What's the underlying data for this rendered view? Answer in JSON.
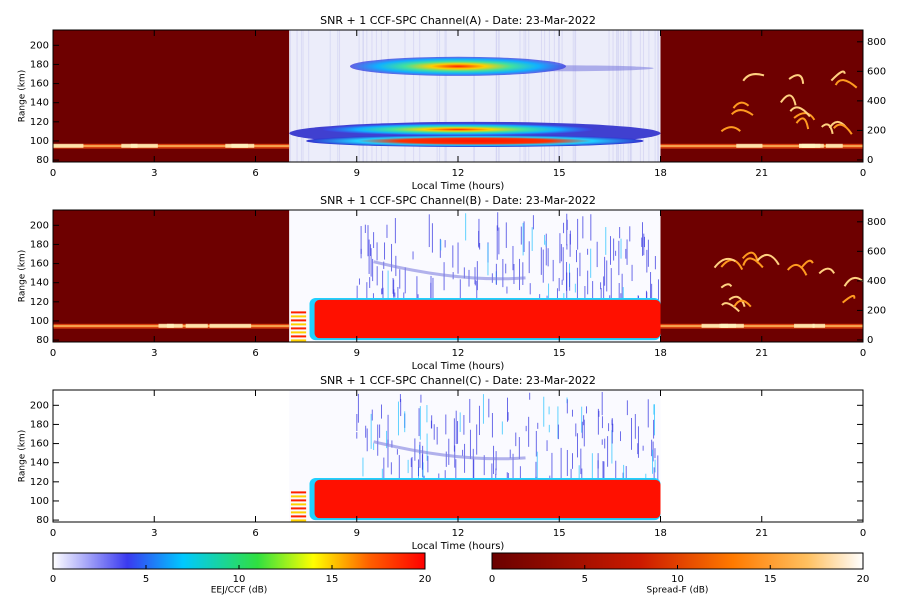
{
  "chart_data": [
    {
      "type": "heatmap",
      "title": "SNR + 1 CCF-SPC Channel(A) - Date: 23-Mar-2022",
      "xlabel": "Local Time (hours)",
      "ylabel": "Range (km)",
      "xlim": [
        0,
        24
      ],
      "xticks": [
        0,
        3,
        6,
        9,
        12,
        15,
        18,
        21,
        {
          "value": 24,
          "label": "0"
        }
      ],
      "ylim": [
        78,
        216
      ],
      "yticks": [
        80,
        100,
        120,
        140,
        160,
        180,
        200
      ],
      "y2lim": [
        -14,
        880
      ],
      "y2ticks": [
        0,
        200,
        400,
        600,
        800
      ]
    },
    {
      "type": "heatmap",
      "title": "SNR + 1 CCF-SPC Channel(B) - Date: 23-Mar-2022",
      "xlabel": "Local Time (hours)",
      "ylabel": "Range (km)",
      "xlim": [
        0,
        24
      ],
      "xticks": [
        0,
        3,
        6,
        9,
        12,
        15,
        18,
        21,
        {
          "value": 24,
          "label": "0"
        }
      ],
      "ylim": [
        78,
        216
      ],
      "yticks": [
        80,
        100,
        120,
        140,
        160,
        180,
        200
      ],
      "y2lim": [
        -14,
        880
      ],
      "y2ticks": [
        0,
        200,
        400,
        600,
        800
      ]
    },
    {
      "type": "heatmap",
      "title": "SNR + 1 CCF-SPC Channel(C) - Date: 23-Mar-2022",
      "xlabel": "Local Time (hours)",
      "ylabel": "Range (km)",
      "xlim": [
        0,
        24
      ],
      "xticks": [
        0,
        3,
        6,
        9,
        12,
        15,
        18,
        21,
        {
          "value": 24,
          "label": "0"
        }
      ],
      "ylim": [
        78,
        216
      ],
      "yticks": [
        80,
        100,
        120,
        140,
        160,
        180,
        200
      ]
    }
  ],
  "colorbars": [
    {
      "label": "EEJ/CCF (dB)",
      "lim": [
        0,
        20
      ],
      "ticks": [
        0,
        5,
        10,
        15,
        20
      ]
    },
    {
      "label": "Spread-F (dB)",
      "lim": [
        0,
        20
      ],
      "ticks": [
        0,
        5,
        10,
        15,
        20
      ]
    }
  ]
}
